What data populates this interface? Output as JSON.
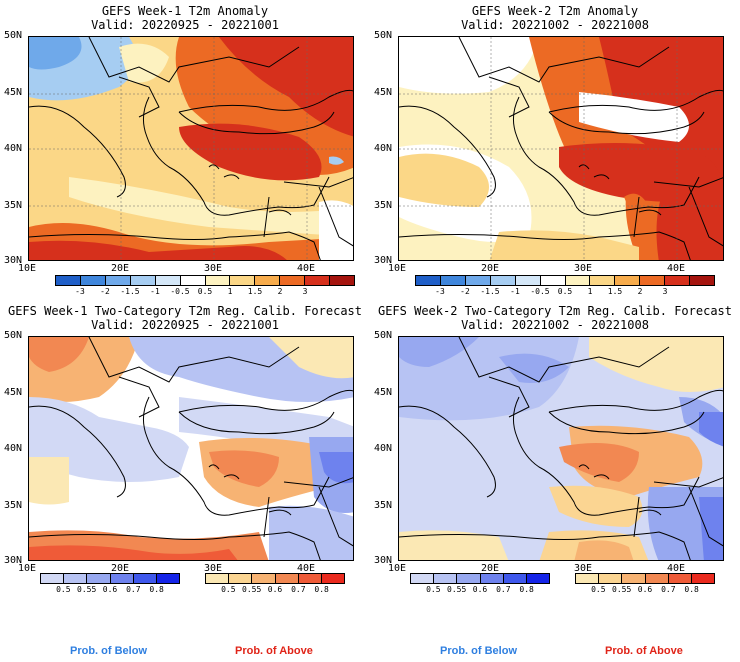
{
  "panels": [
    {
      "title": "GEFS Week-1 T2m Anomaly",
      "valid": "Valid: 20220925 - 20221001"
    },
    {
      "title": "GEFS Week-2 T2m Anomaly",
      "valid": "Valid: 20221002 - 20221008"
    },
    {
      "title": "GEFS Week-1 Two-Category T2m Reg. Calib. Forecast",
      "valid": "Valid: 20220925 - 20221001"
    },
    {
      "title": "GEFS Week-2 Two-Category T2m Reg. Calib. Forecast",
      "valid": "Valid: 20221002 - 20221008"
    }
  ],
  "axes": {
    "lat_labels": [
      "50N",
      "45N",
      "40N",
      "35N",
      "30N"
    ],
    "lon_labels": [
      "10E",
      "20E",
      "30E",
      "40E"
    ]
  },
  "anomaly_colorbar": {
    "labels": [
      "-3",
      "-2",
      "-1.5",
      "-1",
      "-0.5",
      "0.5",
      "1",
      "1.5",
      "2",
      "3"
    ],
    "colors": [
      "#1f5fc8",
      "#3f86dc",
      "#6fa9ea",
      "#a6cdf2",
      "#d4e7f8",
      "#ffffff",
      "#fdf2c0",
      "#fbd787",
      "#f7ac4c",
      "#ec6a24",
      "#d6301c",
      "#a5140e"
    ]
  },
  "prob_colorbars": {
    "below": {
      "labels": [
        "0.5",
        "0.55",
        "0.6",
        "0.7",
        "0.8"
      ],
      "colors": [
        "#d2d9f5",
        "#b7c3f3",
        "#97a8f0",
        "#6e82ee",
        "#3f58ec",
        "#1524e8"
      ]
    },
    "above": {
      "labels": [
        "0.5",
        "0.55",
        "0.6",
        "0.7",
        "0.8"
      ],
      "colors": [
        "#fbe8b4",
        "#fbd592",
        "#f7b373",
        "#f28852",
        "#ef5b38",
        "#ea2a1e"
      ]
    }
  },
  "footer": {
    "below": "Prob. of Below",
    "above": "Prob. of Above"
  },
  "colors": {
    "below_text": "#2f7fe0",
    "above_text": "#e02418"
  }
}
